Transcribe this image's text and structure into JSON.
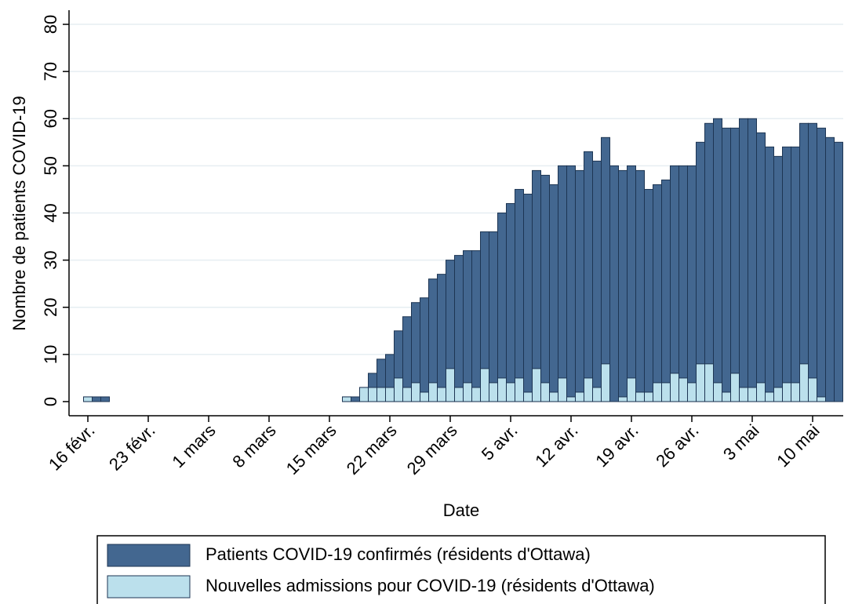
{
  "chart_data": {
    "type": "bar",
    "x_label": "Date",
    "y_label": "Nombre de patients COVID-19",
    "categories": [
      "16 févr.",
      null,
      null,
      null,
      null,
      null,
      null,
      "23 févr.",
      null,
      null,
      null,
      null,
      null,
      null,
      "1 mars",
      null,
      null,
      null,
      null,
      null,
      null,
      "8 mars",
      null,
      null,
      null,
      null,
      null,
      null,
      "15 mars",
      null,
      null,
      null,
      null,
      null,
      null,
      "22 mars",
      null,
      null,
      null,
      null,
      null,
      null,
      "29 mars",
      null,
      null,
      null,
      null,
      null,
      null,
      "5 avr.",
      null,
      null,
      null,
      null,
      null,
      null,
      "12 avr.",
      null,
      null,
      null,
      null,
      null,
      null,
      "19 avr.",
      null,
      null,
      null,
      null,
      null,
      null,
      "26 avr.",
      null,
      null,
      null,
      null,
      null,
      null,
      "3 mai",
      null,
      null,
      null,
      null,
      null,
      null,
      "10 mai",
      null,
      null,
      null
    ],
    "series": [
      {
        "name": "Patients COVID-19 confirmés (résidents d'Ottawa)",
        "color": "#436790",
        "values": [
          1,
          1,
          1,
          0,
          0,
          0,
          0,
          0,
          0,
          0,
          0,
          0,
          0,
          0,
          0,
          0,
          0,
          0,
          0,
          0,
          0,
          0,
          0,
          0,
          0,
          0,
          0,
          0,
          0,
          0,
          1,
          1,
          3,
          6,
          9,
          10,
          15,
          18,
          21,
          22,
          26,
          27,
          30,
          31,
          32,
          32,
          36,
          36,
          40,
          42,
          45,
          44,
          49,
          48,
          46,
          50,
          50,
          49,
          53,
          51,
          56,
          50,
          49,
          50,
          49,
          45,
          46,
          47,
          50,
          50,
          50,
          55,
          59,
          60,
          58,
          58,
          60,
          60,
          57,
          54,
          52,
          54,
          54,
          59,
          59,
          58,
          56,
          55
        ]
      },
      {
        "name": "Nouvelles admissions pour COVID-19 (résidents d'Ottawa)",
        "color": "#bbe0ec",
        "values": [
          1,
          0,
          0,
          0,
          0,
          0,
          0,
          0,
          0,
          0,
          0,
          0,
          0,
          0,
          0,
          0,
          0,
          0,
          0,
          0,
          0,
          0,
          0,
          0,
          0,
          0,
          0,
          0,
          0,
          0,
          1,
          0,
          3,
          3,
          3,
          3,
          5,
          3,
          4,
          2,
          4,
          3,
          7,
          3,
          4,
          3,
          7,
          4,
          5,
          4,
          5,
          2,
          7,
          4,
          2,
          5,
          1,
          2,
          5,
          3,
          8,
          0,
          1,
          5,
          2,
          2,
          4,
          4,
          6,
          5,
          4,
          8,
          8,
          4,
          2,
          6,
          3,
          3,
          4,
          2,
          3,
          4,
          4,
          8,
          5,
          1,
          0,
          0
        ]
      }
    ],
    "ylim": [
      -3,
      83
    ],
    "yticks": [
      0,
      10,
      20,
      30,
      40,
      50,
      60,
      70,
      80
    ],
    "grid": true,
    "legend": "bottom"
  }
}
